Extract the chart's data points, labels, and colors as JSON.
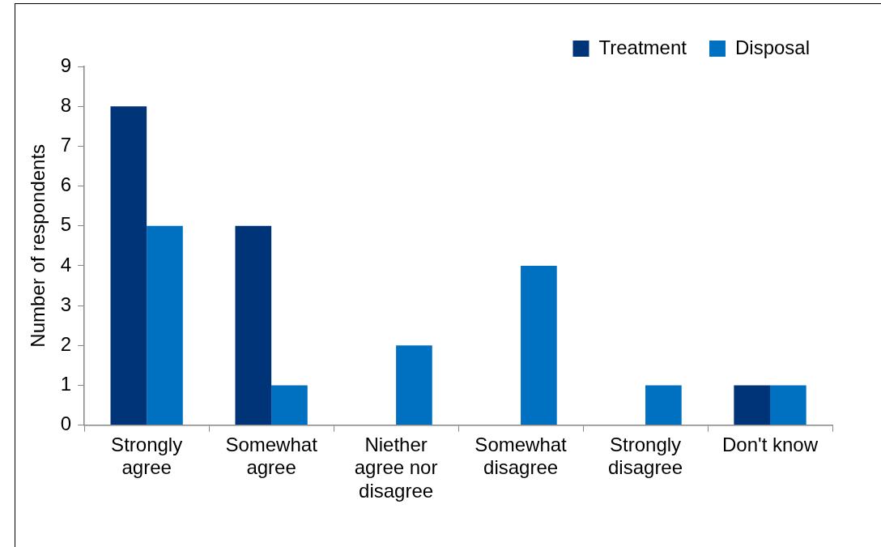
{
  "chart_data": {
    "type": "bar",
    "ylabel": "Number of respondents",
    "categories": [
      "Strongly agree",
      "Somewhat agree",
      "Niether agree nor disagree",
      "Somewhat disagree",
      "Strongly disagree",
      "Don't know"
    ],
    "series": [
      {
        "name": "Treatment",
        "color": "#003478",
        "values": [
          8,
          5,
          0,
          0,
          0,
          1
        ]
      },
      {
        "name": "Disposal",
        "color": "#0070c0",
        "values": [
          5,
          1,
          2,
          4,
          1,
          1
        ]
      }
    ],
    "ylim": [
      0,
      9
    ],
    "yticks": [
      0,
      1,
      2,
      3,
      4,
      5,
      6,
      7,
      8,
      9
    ],
    "grid": false,
    "legend": "top right"
  }
}
